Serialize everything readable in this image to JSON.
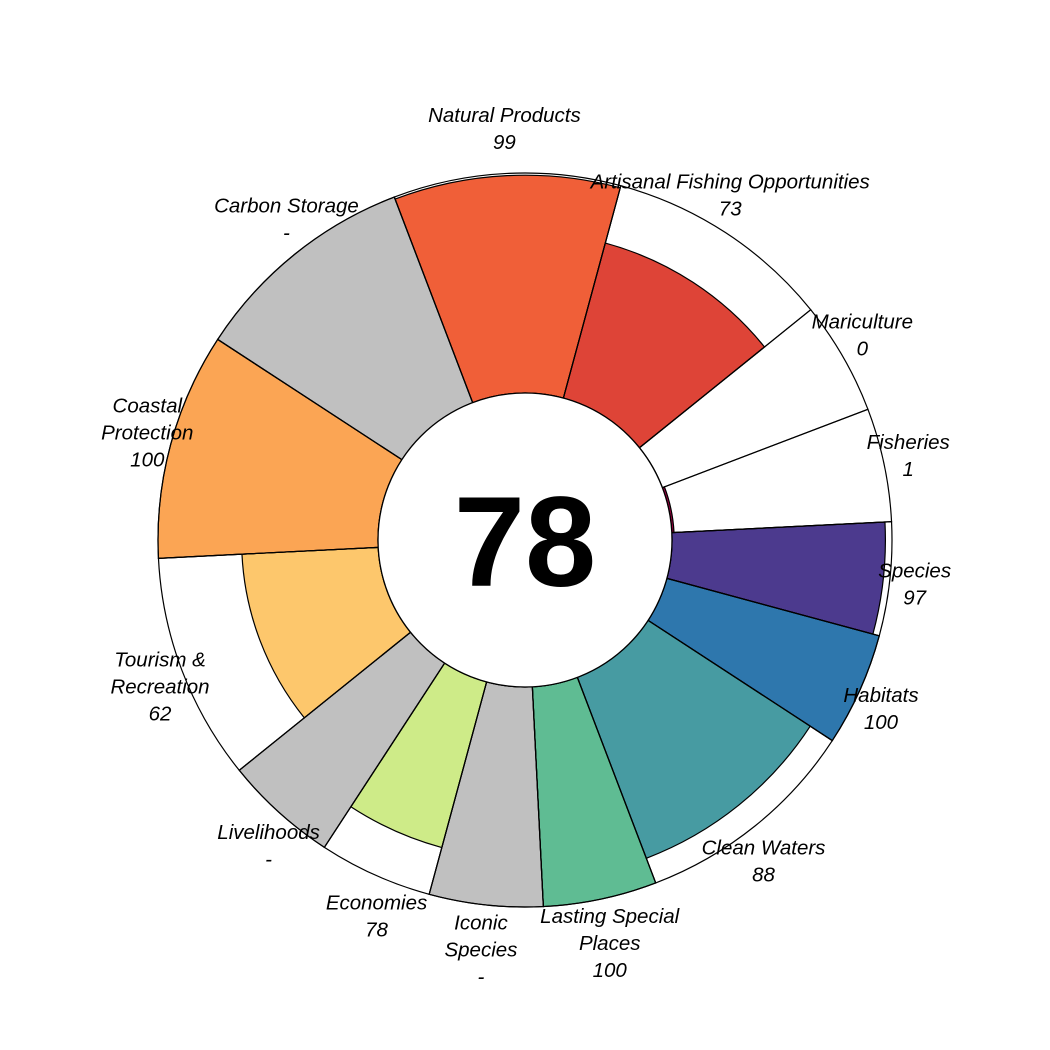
{
  "chart_data": {
    "type": "aster",
    "center_score": "78",
    "score_max": 100,
    "petals": [
      {
        "label": [
          "Natural Products"
        ],
        "score": 99,
        "score_text": "99",
        "color": "#F05F38",
        "weight": 1
      },
      {
        "label": [
          "Artisanal Fishing Opportunities"
        ],
        "score": 73,
        "score_text": "73",
        "color": "#DE4437",
        "weight": 1
      },
      {
        "label": [
          "Mariculture"
        ],
        "score": 0,
        "score_text": "0",
        "color": "#B2182B",
        "weight": 0.5
      },
      {
        "label": [
          "Fisheries"
        ],
        "score": 1,
        "score_text": "1",
        "color": "#9E0142",
        "weight": 0.5
      },
      {
        "label": [
          "Species"
        ],
        "score": 97,
        "score_text": "97",
        "color": "#4C3A8E",
        "weight": 0.5
      },
      {
        "label": [
          "Habitats"
        ],
        "score": 100,
        "score_text": "100",
        "color": "#2E77AD",
        "weight": 0.5
      },
      {
        "label": [
          "Clean Waters"
        ],
        "score": 88,
        "score_text": "88",
        "color": "#479BA2",
        "weight": 1
      },
      {
        "label": [
          "Lasting Special",
          "Places"
        ],
        "score": 100,
        "score_text": "100",
        "color": "#5FBC93",
        "weight": 0.5
      },
      {
        "label": [
          "Iconic",
          "Species"
        ],
        "score": 100,
        "score_text": "-",
        "color": "#C0C0C0",
        "weight": 0.5
      },
      {
        "label": [
          "Economies"
        ],
        "score": 78,
        "score_text": "78",
        "color": "#CEEB88",
        "weight": 0.5
      },
      {
        "label": [
          "Livelihoods"
        ],
        "score": 100,
        "score_text": "-",
        "color": "#C0C0C0",
        "weight": 0.5
      },
      {
        "label": [
          "Tourism &",
          "Recreation"
        ],
        "score": 62,
        "score_text": "62",
        "color": "#FDC76C",
        "weight": 1
      },
      {
        "label": [
          "Coastal",
          "Protection"
        ],
        "score": 100,
        "score_text": "100",
        "color": "#FBA554",
        "weight": 1
      },
      {
        "label": [
          "Carbon Storage"
        ],
        "score": 100,
        "score_text": "-",
        "color": "#C0C0C0",
        "weight": 1
      }
    ]
  }
}
